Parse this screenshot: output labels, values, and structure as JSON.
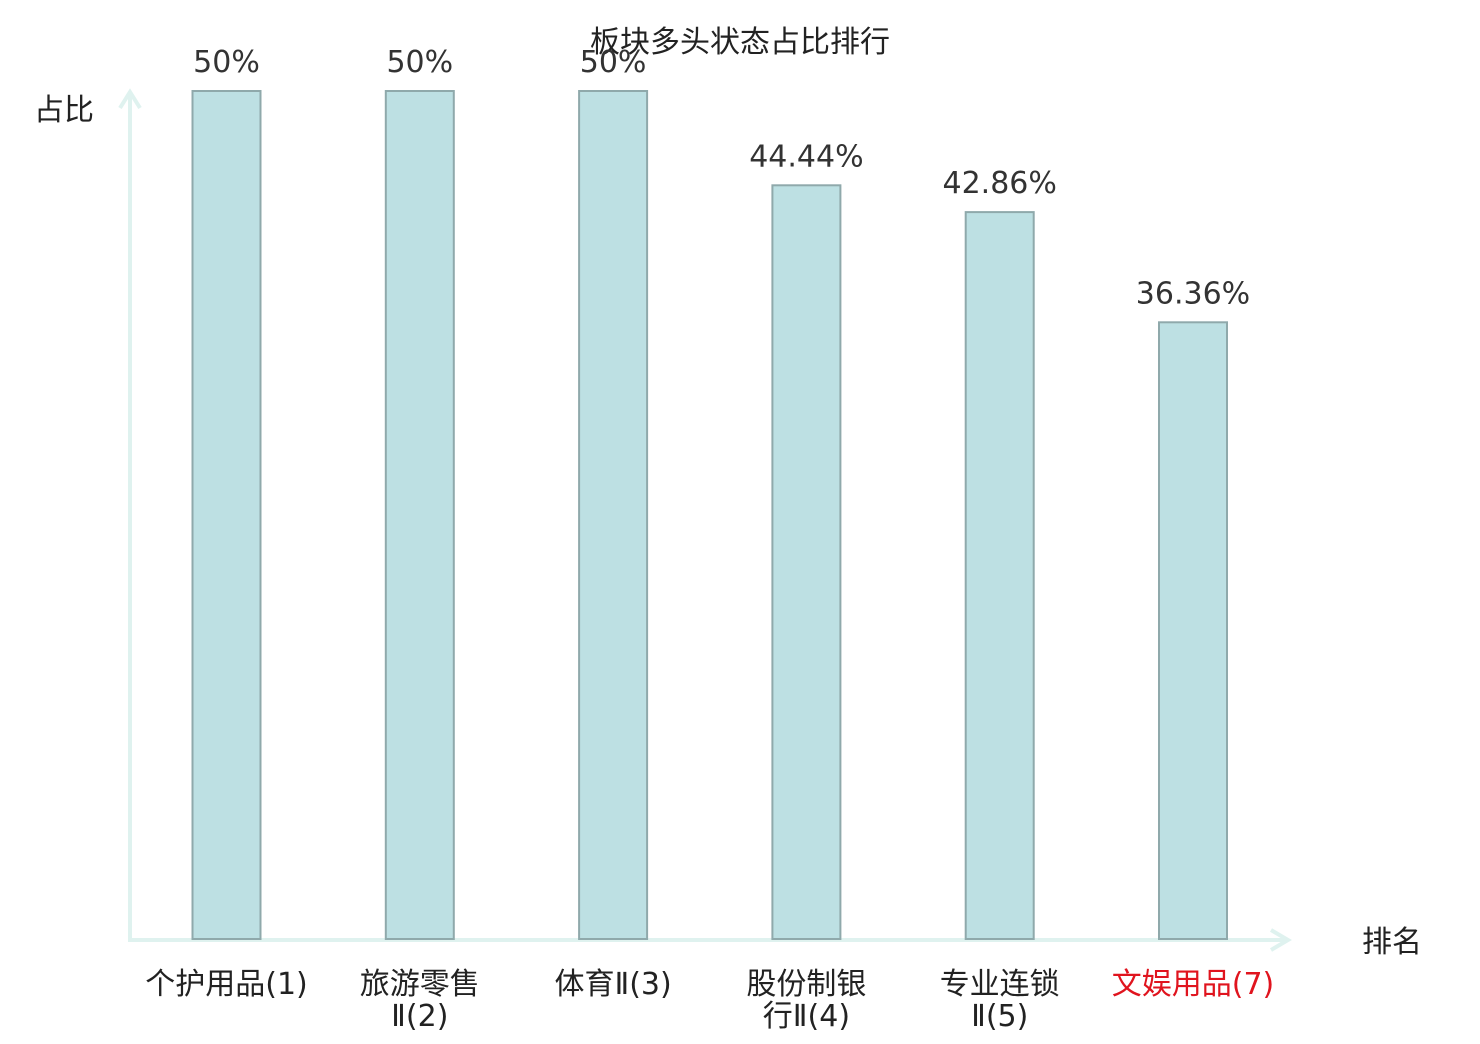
{
  "chart_data": {
    "type": "bar",
    "title": "板块多头状态占比排行",
    "xlabel": "排名",
    "ylabel": "占比",
    "categories": [
      [
        "个护用品(1)"
      ],
      [
        "旅游零售",
        "Ⅱ(2)"
      ],
      [
        "体育Ⅱ(3)"
      ],
      [
        "股份制银",
        "行Ⅱ(4)"
      ],
      [
        "专业连锁",
        "Ⅱ(5)"
      ],
      [
        "文娱用品(7)"
      ]
    ],
    "values": [
      50,
      50,
      50,
      44.44,
      42.86,
      36.36
    ],
    "value_labels": [
      "50%",
      "50%",
      "50%",
      "44.44%",
      "42.86%",
      "36.36%"
    ],
    "highlight_index": 5,
    "ylim": [
      0,
      50
    ],
    "grid": false,
    "colors": {
      "bar_fill": "#bde0e3",
      "bar_stroke": "#8fa9ab",
      "axis": "#dff2ef",
      "text": "#222222",
      "value_text": "#333333",
      "highlight": "#e0141e"
    }
  }
}
